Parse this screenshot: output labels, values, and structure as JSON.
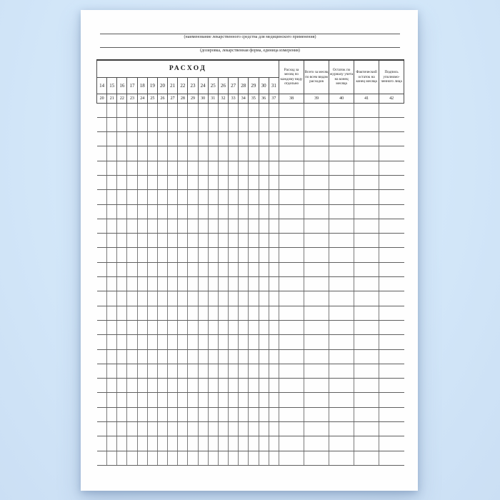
{
  "document": {
    "caption_line_1": "(наименование лекарственного средства для медицинского применения)",
    "caption_line_2": "(дозировка, лекарственная форма, единица измерения)",
    "table": {
      "section_header": "РАСХОД",
      "day_numbers": [
        "14",
        "15",
        "16",
        "17",
        "18",
        "19",
        "20",
        "21",
        "22",
        "23",
        "24",
        "25",
        "26",
        "27",
        "28",
        "29",
        "30",
        "31"
      ],
      "day_code_numbers": [
        "20",
        "21",
        "22",
        "23",
        "24",
        "25",
        "26",
        "27",
        "28",
        "29",
        "30",
        "31",
        "32",
        "33",
        "34",
        "35",
        "36",
        "37"
      ],
      "wide_columns": [
        {
          "code": "38",
          "label": "Расход за месяц по каждому виду отдельно"
        },
        {
          "code": "39",
          "label": "Всего за месяц по всем видам расходов"
        },
        {
          "code": "40",
          "label": "Остаток по журналу учета на конец месяца"
        },
        {
          "code": "41",
          "label": "Фактический остаток на конец месяца"
        },
        {
          "code": "42",
          "label": "Подпись уполномо-ченного лица"
        }
      ],
      "empty_body_rows": 25,
      "body_columns": 23
    }
  },
  "colors": {
    "background": "#d3e7f9",
    "paper": "#fefefe",
    "grid_line": "#5f5f5f",
    "text": "#1c1c1c"
  }
}
